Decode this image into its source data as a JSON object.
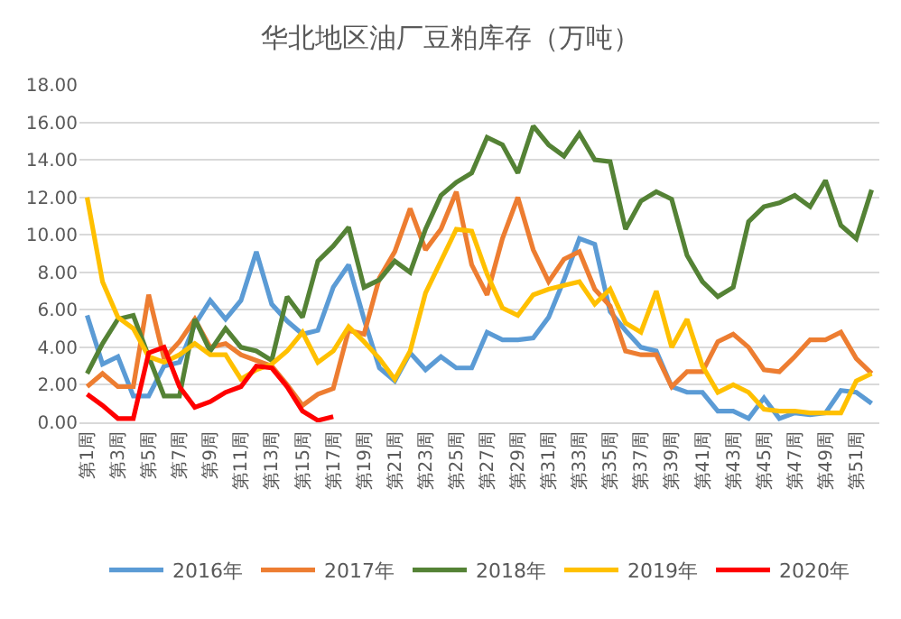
{
  "chart_data": {
    "type": "line",
    "title": "华北地区油厂豆粕库存（万吨）",
    "categories": [
      "第1周",
      null,
      "第3周",
      null,
      "第5周",
      null,
      "第7周",
      null,
      "第9周",
      null,
      "第11周",
      null,
      "第13周",
      null,
      "第15周",
      null,
      "第17周",
      null,
      "第19周",
      null,
      "第21周",
      null,
      "第23周",
      null,
      "第25周",
      null,
      "第27周",
      null,
      "第29周",
      null,
      "第31周",
      null,
      "第33周",
      null,
      "第35周",
      null,
      "第37周",
      null,
      "第39周",
      null,
      "第41周",
      null,
      "第43周",
      null,
      "第45周",
      null,
      "第47周",
      null,
      "第49周",
      null,
      "第51周",
      null
    ],
    "series": [
      {
        "name": "2016年",
        "color": "#5b9bd5",
        "values": [
          5.7,
          3.1,
          3.5,
          1.4,
          1.4,
          3.0,
          3.2,
          5.2,
          6.5,
          5.5,
          6.5,
          9.1,
          6.3,
          5.4,
          4.7,
          4.9,
          7.2,
          8.4,
          5.5,
          2.9,
          2.2,
          3.7,
          2.8,
          3.5,
          2.9,
          2.9,
          4.8,
          4.4,
          4.4,
          4.5,
          5.6,
          7.6,
          9.8,
          9.5,
          5.9,
          4.9,
          4.0,
          3.8,
          1.9,
          1.6,
          1.6,
          0.6,
          0.6,
          0.2,
          1.3,
          0.2,
          0.5,
          0.4,
          0.5,
          1.7,
          1.6,
          1.0
        ]
      },
      {
        "name": "2017年",
        "color": "#ed7d31",
        "values": [
          1.9,
          2.6,
          1.9,
          1.9,
          6.8,
          3.4,
          4.3,
          5.5,
          4.0,
          4.2,
          3.6,
          3.3,
          3.0,
          2.0,
          0.9,
          1.5,
          1.8,
          4.9,
          4.7,
          7.7,
          9.1,
          11.4,
          9.2,
          10.3,
          12.3,
          8.4,
          6.8,
          9.8,
          12.0,
          9.2,
          7.5,
          8.7,
          9.1,
          7.1,
          6.2,
          3.8,
          3.6,
          3.6,
          1.9,
          2.7,
          2.7,
          4.3,
          4.7,
          4.0,
          2.8,
          2.7,
          3.5,
          4.4,
          4.4,
          4.8,
          3.4,
          2.6
        ]
      },
      {
        "name": "2018年",
        "color": "#548235",
        "values": [
          2.6,
          4.2,
          5.5,
          5.7,
          3.5,
          1.4,
          1.4,
          5.5,
          3.8,
          5.0,
          4.0,
          3.8,
          3.3,
          6.7,
          5.6,
          8.6,
          9.4,
          10.4,
          7.2,
          7.6,
          8.6,
          8.0,
          10.3,
          12.1,
          12.8,
          13.3,
          15.2,
          14.8,
          13.3,
          15.8,
          14.8,
          14.2,
          15.4,
          14.0,
          13.9,
          10.3,
          11.8,
          12.3,
          11.9,
          8.9,
          7.5,
          6.7,
          7.2,
          10.7,
          11.5,
          11.7,
          12.1,
          11.5,
          12.9,
          10.5,
          9.8,
          12.4
        ]
      },
      {
        "name": "2019年",
        "color": "#ffc000",
        "values": [
          12.0,
          7.5,
          5.6,
          5.0,
          3.5,
          3.2,
          3.6,
          4.2,
          3.6,
          3.6,
          2.3,
          2.8,
          3.1,
          3.8,
          4.8,
          3.2,
          3.8,
          5.1,
          4.3,
          3.4,
          2.3,
          3.8,
          6.9,
          8.6,
          10.3,
          10.2,
          7.9,
          6.1,
          5.7,
          6.8,
          7.1,
          7.3,
          7.5,
          6.3,
          7.1,
          5.3,
          4.8,
          7.0,
          4.0,
          5.5,
          3.0,
          1.6,
          2.0,
          1.6,
          0.7,
          0.6,
          0.6,
          0.5,
          0.5,
          0.5,
          2.2,
          2.6
        ]
      },
      {
        "name": "2020年",
        "color": "#ff0000",
        "values": [
          1.5,
          0.9,
          0.2,
          0.2,
          3.7,
          4.0,
          1.9,
          0.8,
          1.1,
          1.6,
          1.9,
          3.0,
          2.9,
          1.9,
          0.6,
          0.1,
          0.3,
          null,
          null,
          null,
          null,
          null,
          null,
          null,
          null,
          null,
          null,
          null,
          null,
          null,
          null,
          null,
          null,
          null,
          null,
          null,
          null,
          null,
          null,
          null,
          null,
          null,
          null,
          null,
          null,
          null,
          null,
          null,
          null,
          null,
          null,
          null
        ]
      }
    ],
    "ylim": [
      0,
      18
    ],
    "yticks": [
      {
        "value": 0,
        "label": "0.00"
      },
      {
        "value": 2,
        "label": "2.00"
      },
      {
        "value": 4,
        "label": "4.00"
      },
      {
        "value": 6,
        "label": "6.00"
      },
      {
        "value": 8,
        "label": "8.00"
      },
      {
        "value": 10,
        "label": "10.00"
      },
      {
        "value": 12,
        "label": "12.00"
      },
      {
        "value": 14,
        "label": "14.00"
      },
      {
        "value": 16,
        "label": "16.00"
      },
      {
        "value": 18,
        "label": "18.00"
      }
    ],
    "grid": "y",
    "legend": "bottom",
    "marker": "none",
    "line_style": "solid"
  }
}
